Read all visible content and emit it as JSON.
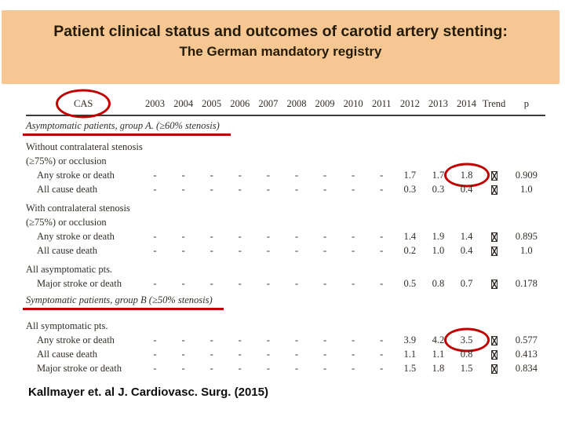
{
  "slide": {
    "title": "Patient clinical status and outcomes of carotid artery stenting:",
    "subtitle": "The German mandatory registry",
    "citation": "Kallmayer et. al J. Cardiovasc. Surg. (2015)",
    "band_color": "#f6c793",
    "accent_color": "#c00000"
  },
  "table": {
    "columns": [
      "CAS",
      "2003",
      "2004",
      "2005",
      "2006",
      "2007",
      "2008",
      "2009",
      "2010",
      "2011",
      "2012",
      "2013",
      "2014",
      "Trend",
      "p"
    ],
    "cas_header_circled": true,
    "trend_glyph": "missing-glyph-box",
    "rows": [
      {
        "type": "section",
        "label": "Asymptomatic patients, group A. (≥60% stenosis)",
        "red_underline": true
      },
      {
        "type": "label",
        "label": "Without contralateral stenosis"
      },
      {
        "type": "label",
        "label": "(≥75%) or occlusion"
      },
      {
        "type": "data",
        "label": "Any stroke or death",
        "indent": true,
        "values": [
          "-",
          "-",
          "-",
          "-",
          "-",
          "-",
          "-",
          "-",
          "-",
          "1.7",
          "1.7",
          "1.8"
        ],
        "p": "0.909",
        "circled_value_index": 11
      },
      {
        "type": "data",
        "label": "All cause death",
        "indent": true,
        "values": [
          "-",
          "-",
          "-",
          "-",
          "-",
          "-",
          "-",
          "-",
          "-",
          "0.3",
          "0.3",
          "0.4"
        ],
        "p": "1.0"
      },
      {
        "type": "label",
        "label": "With contralateral stenosis",
        "space_before": true
      },
      {
        "type": "label",
        "label": "(≥75%) or occlusion"
      },
      {
        "type": "data",
        "label": "Any stroke or death",
        "indent": true,
        "values": [
          "-",
          "-",
          "-",
          "-",
          "-",
          "-",
          "-",
          "-",
          "-",
          "1.4",
          "1.9",
          "1.4"
        ],
        "p": "0.895"
      },
      {
        "type": "data",
        "label": "All cause death",
        "indent": true,
        "values": [
          "-",
          "-",
          "-",
          "-",
          "-",
          "-",
          "-",
          "-",
          "-",
          "0.2",
          "1.0",
          "0.4"
        ],
        "p": "1.0"
      },
      {
        "type": "label",
        "label": "All asymptomatic pts.",
        "space_before": true
      },
      {
        "type": "data",
        "label": "Major stroke or death",
        "indent": true,
        "values": [
          "-",
          "-",
          "-",
          "-",
          "-",
          "-",
          "-",
          "-",
          "-",
          "0.5",
          "0.8",
          "0.7"
        ],
        "p": "0.178"
      },
      {
        "type": "section",
        "label": "Symptomatic patients, group B (≥50% stenosis)",
        "red_underline": true,
        "space_before": true
      },
      {
        "type": "label",
        "label": "All symptomatic pts.",
        "space_before": true
      },
      {
        "type": "data",
        "label": "Any stroke or death",
        "indent": true,
        "values": [
          "-",
          "-",
          "-",
          "-",
          "-",
          "-",
          "-",
          "-",
          "-",
          "3.9",
          "4.2",
          "3.5"
        ],
        "p": "0.577",
        "circled_value_index": 11
      },
      {
        "type": "data",
        "label": "All cause death",
        "indent": true,
        "values": [
          "-",
          "-",
          "-",
          "-",
          "-",
          "-",
          "-",
          "-",
          "-",
          "1.1",
          "1.1",
          "0.8"
        ],
        "p": "0.413"
      },
      {
        "type": "data",
        "label": "Major stroke or death",
        "indent": true,
        "values": [
          "-",
          "-",
          "-",
          "-",
          "-",
          "-",
          "-",
          "-",
          "-",
          "1.5",
          "1.8",
          "1.5"
        ],
        "p": "0.834"
      }
    ],
    "annotations": [
      {
        "shape": "red-ellipse",
        "target": "CAS column header"
      },
      {
        "shape": "red-ellipse",
        "target": "value 1.8 (2014, any stroke or death, group A without contralateral stenosis)"
      },
      {
        "shape": "red-ellipse",
        "target": "value 3.5 (2014, any stroke or death, all symptomatic pts.)"
      },
      {
        "shape": "red-underline",
        "target": "Asymptomatic patients, group A. (≥60% stenosis)"
      },
      {
        "shape": "red-underline",
        "target": "Symptomatic patients, group B (≥50% stenosis)"
      }
    ]
  }
}
